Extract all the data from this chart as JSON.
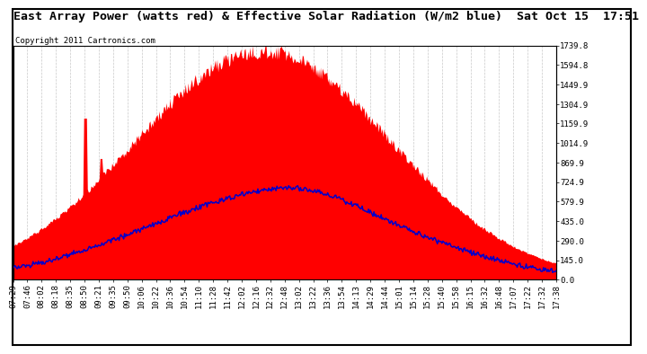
{
  "title": "East Array Power (watts red) & Effective Solar Radiation (W/m2 blue)  Sat Oct 15  17:51",
  "copyright": "Copyright 2011 Cartronics.com",
  "background_color": "#ffffff",
  "grid_color": "#bbbbbb",
  "y_ticks": [
    0.0,
    145.0,
    290.0,
    435.0,
    579.9,
    724.9,
    869.9,
    1014.9,
    1159.9,
    1304.9,
    1449.9,
    1594.8,
    1739.8
  ],
  "y_max": 1739.8,
  "x_labels": [
    "07:29",
    "07:46",
    "08:02",
    "08:18",
    "08:35",
    "08:50",
    "09:21",
    "09:35",
    "09:50",
    "10:06",
    "10:22",
    "10:36",
    "10:54",
    "11:10",
    "11:28",
    "11:42",
    "12:02",
    "12:16",
    "12:32",
    "12:48",
    "13:02",
    "13:22",
    "13:36",
    "13:54",
    "14:13",
    "14:29",
    "14:44",
    "15:01",
    "15:14",
    "15:28",
    "15:40",
    "15:58",
    "16:15",
    "16:32",
    "16:48",
    "17:07",
    "17:22",
    "17:32",
    "17:38"
  ],
  "red_color": "#ff0000",
  "blue_color": "#0000cc",
  "title_fontsize": 9.5,
  "copyright_fontsize": 6.5,
  "tick_fontsize": 6.5,
  "border_color": "#000000"
}
